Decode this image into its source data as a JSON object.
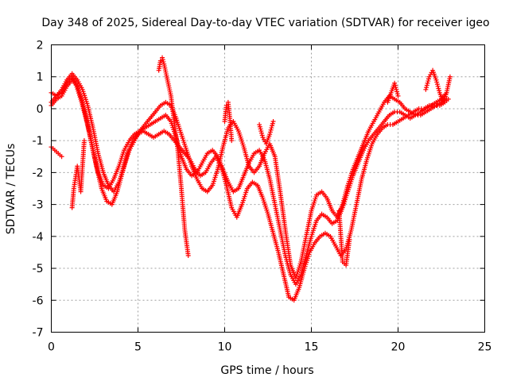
{
  "chart_data": {
    "type": "scatter",
    "title": "Day 348 of 2025, Sidereal Day-to-day VTEC variation (SDTVAR) for receiver igeo",
    "xlabel": "GPS time / hours",
    "ylabel": "SDTVAR / TECUs",
    "xlim": [
      0,
      25
    ],
    "ylim": [
      -7,
      2
    ],
    "xticks": [
      0,
      5,
      10,
      15,
      20,
      25
    ],
    "yticks": [
      -7,
      -6,
      -5,
      -4,
      -3,
      -2,
      -1,
      0,
      1,
      2
    ],
    "grid": true,
    "marker": "plus",
    "color": "#ff0000",
    "series": [
      {
        "x": [
          0.0,
          0.3,
          0.6,
          0.9,
          1.2,
          1.4,
          1.7,
          2.0,
          2.3,
          2.6,
          2.9,
          3.2,
          3.5,
          3.8,
          4.1,
          4.4,
          4.7,
          5.0,
          5.3,
          5.6,
          5.9,
          6.2,
          6.5,
          6.8,
          7.1,
          7.4,
          7.7,
          8.0,
          8.3,
          8.6,
          8.9,
          9.2,
          9.5,
          9.8,
          10.1,
          10.4,
          10.7,
          11.0,
          11.3,
          11.6,
          11.9,
          12.2,
          12.5,
          12.8,
          13.1,
          13.4,
          13.7,
          14.0,
          14.3,
          14.6,
          14.9,
          15.2,
          15.5,
          15.8,
          16.1,
          16.4,
          16.7,
          17.0,
          17.3,
          17.6,
          17.9,
          18.2,
          18.5,
          18.8,
          19.1,
          19.4,
          19.7,
          20.0,
          20.3,
          20.6,
          20.9,
          21.2,
          21.5,
          21.8,
          22.1,
          22.4,
          22.7,
          22.9
        ],
        "y": [
          0.2,
          0.4,
          0.5,
          0.8,
          1.0,
          0.8,
          0.3,
          -0.3,
          -1.0,
          -1.8,
          -2.5,
          -2.9,
          -3.0,
          -2.6,
          -2.0,
          -1.4,
          -1.0,
          -0.8,
          -0.7,
          -0.8,
          -0.9,
          -0.8,
          -0.7,
          -0.8,
          -1.0,
          -1.2,
          -1.4,
          -1.6,
          -1.9,
          -2.1,
          -2.0,
          -1.7,
          -1.5,
          -1.8,
          -2.4,
          -3.1,
          -3.4,
          -3.0,
          -2.5,
          -2.3,
          -2.4,
          -2.8,
          -3.3,
          -3.9,
          -4.5,
          -5.2,
          -5.9,
          -6.0,
          -5.6,
          -5.0,
          -4.5,
          -4.2,
          -4.0,
          -3.9,
          -4.0,
          -4.3,
          -4.6,
          -4.4,
          -3.8,
          -3.0,
          -2.2,
          -1.6,
          -1.1,
          -0.8,
          -0.6,
          -0.5,
          -0.5,
          -0.4,
          -0.3,
          -0.2,
          -0.1,
          0.0,
          0.0,
          0.1,
          0.1,
          0.1,
          0.2,
          0.3
        ]
      },
      {
        "x": [
          0.0,
          0.3,
          0.6,
          0.9,
          1.2,
          1.5,
          1.8,
          2.1,
          2.4,
          2.7,
          3.0,
          3.3,
          3.6,
          3.9,
          4.2,
          4.5,
          4.8,
          5.1,
          5.4,
          5.7,
          6.0,
          6.3,
          6.6,
          6.9,
          7.2,
          7.5,
          7.8,
          8.1,
          8.4,
          8.7,
          9.0,
          9.3,
          9.6,
          9.9,
          10.2,
          10.5,
          10.8,
          11.1,
          11.4,
          11.7,
          12.0,
          12.3,
          12.6,
          12.9,
          13.2,
          13.5,
          13.8,
          14.1,
          14.4,
          14.7,
          15.0,
          15.3,
          15.6,
          15.9,
          16.2,
          16.5,
          16.8,
          17.1,
          17.4,
          17.7,
          18.0,
          18.3,
          18.6,
          18.9,
          19.2,
          19.5,
          19.8,
          20.1,
          20.4,
          20.7,
          21.0,
          21.3,
          21.6,
          21.9,
          22.2,
          22.5,
          22.8
        ],
        "y": [
          0.5,
          0.4,
          0.6,
          0.9,
          1.1,
          0.9,
          0.6,
          0.1,
          -0.6,
          -1.4,
          -2.0,
          -2.4,
          -2.6,
          -2.3,
          -1.8,
          -1.3,
          -1.0,
          -0.7,
          -0.5,
          -0.3,
          -0.1,
          0.1,
          0.2,
          0.1,
          -0.3,
          -0.8,
          -1.3,
          -1.8,
          -2.2,
          -2.5,
          -2.6,
          -2.4,
          -1.9,
          -1.2,
          -0.6,
          -0.4,
          -0.7,
          -1.2,
          -1.8,
          -2.0,
          -1.8,
          -1.4,
          -1.1,
          -1.5,
          -2.6,
          -3.8,
          -4.9,
          -5.3,
          -4.8,
          -4.0,
          -3.2,
          -2.7,
          -2.6,
          -2.8,
          -3.2,
          -3.4,
          -3.0,
          -2.4,
          -1.9,
          -1.5,
          -1.1,
          -0.7,
          -0.4,
          -0.1,
          0.2,
          0.4,
          0.3,
          0.2,
          0.0,
          -0.1,
          -0.2,
          -0.2,
          -0.1,
          0.0,
          0.1,
          0.2,
          0.3
        ]
      },
      {
        "x": [
          0.0,
          0.3,
          0.6,
          0.9,
          1.2,
          1.5,
          1.8,
          2.1,
          2.4,
          2.7,
          3.0,
          3.3,
          3.6,
          3.9,
          4.2,
          4.5,
          4.8,
          5.1,
          5.4,
          5.7,
          6.0,
          6.3,
          6.6,
          6.9,
          7.2,
          7.5,
          7.8,
          8.1,
          8.4,
          8.7,
          9.0,
          9.3,
          9.6,
          9.9,
          10.2,
          10.5,
          10.8,
          11.1,
          11.4,
          11.7,
          12.0,
          12.3,
          12.6,
          12.9,
          13.2,
          13.5,
          13.8,
          14.1,
          14.4,
          14.7,
          15.0,
          15.3,
          15.6,
          15.9,
          16.2,
          16.5,
          16.8,
          17.1,
          17.4,
          17.7,
          18.0,
          18.3,
          18.6,
          18.9,
          19.2,
          19.5,
          19.8,
          20.1,
          20.4,
          20.7,
          21.0,
          21.3,
          21.6,
          21.9,
          22.2,
          22.5,
          22.8
        ],
        "y": [
          0.1,
          0.3,
          0.4,
          0.7,
          0.9,
          0.7,
          0.2,
          -0.5,
          -1.3,
          -2.0,
          -2.4,
          -2.5,
          -2.2,
          -1.8,
          -1.3,
          -1.0,
          -0.8,
          -0.7,
          -0.6,
          -0.5,
          -0.4,
          -0.3,
          -0.2,
          -0.4,
          -0.9,
          -1.5,
          -1.9,
          -2.1,
          -2.0,
          -1.7,
          -1.4,
          -1.3,
          -1.5,
          -1.9,
          -2.3,
          -2.6,
          -2.5,
          -2.1,
          -1.7,
          -1.4,
          -1.3,
          -1.6,
          -2.2,
          -3.0,
          -3.8,
          -4.6,
          -5.2,
          -5.5,
          -5.2,
          -4.6,
          -4.0,
          -3.5,
          -3.3,
          -3.4,
          -3.6,
          -3.5,
          -3.1,
          -2.6,
          -2.1,
          -1.7,
          -1.3,
          -1.0,
          -0.8,
          -0.6,
          -0.4,
          -0.2,
          -0.1,
          -0.1,
          -0.2,
          -0.3,
          -0.2,
          -0.1,
          0.0,
          0.1,
          0.2,
          0.3,
          0.5
        ]
      },
      {
        "x": [
          0.0,
          0.2,
          0.4,
          0.6,
          1.2,
          1.3,
          1.5,
          1.7,
          1.9,
          6.2,
          6.3,
          6.4,
          6.5,
          6.7,
          6.9,
          7.3,
          7.5,
          7.7,
          7.9,
          10.0,
          10.1,
          10.2,
          10.3,
          10.4,
          12.0,
          12.2,
          12.4,
          12.6,
          12.8,
          16.6,
          16.8,
          17.0,
          17.2,
          19.4,
          19.6,
          19.8,
          20.0,
          21.6,
          21.8,
          22.0,
          22.2,
          22.4,
          22.6,
          22.8,
          23.0
        ],
        "y": [
          -1.2,
          -1.3,
          -1.4,
          -1.5,
          -3.1,
          -2.5,
          -1.8,
          -2.6,
          -1.0,
          1.2,
          1.5,
          1.6,
          1.4,
          0.9,
          0.4,
          -1.3,
          -2.5,
          -3.8,
          -4.6,
          -0.4,
          0.1,
          0.2,
          -0.3,
          -1.0,
          -0.5,
          -0.9,
          -1.1,
          -0.8,
          -0.4,
          -3.2,
          -4.8,
          -4.9,
          -4.1,
          0.2,
          0.5,
          0.8,
          0.4,
          0.6,
          1.0,
          1.2,
          0.9,
          0.5,
          0.2,
          0.5,
          1.0
        ]
      }
    ]
  }
}
